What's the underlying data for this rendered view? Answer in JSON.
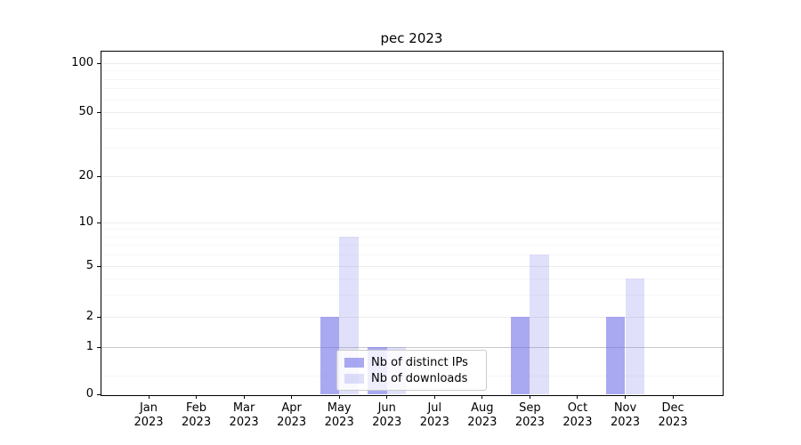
{
  "title": "pec 2023",
  "chart_data": {
    "type": "bar",
    "title": "pec 2023",
    "x_months": [
      "Jan",
      "Feb",
      "Mar",
      "Apr",
      "May",
      "Jun",
      "Jul",
      "Aug",
      "Sep",
      "Oct",
      "Nov",
      "Dec"
    ],
    "x_year": "2023",
    "categories": [
      "Jan 2023",
      "Feb 2023",
      "Mar 2023",
      "Apr 2023",
      "May 2023",
      "Jun 2023",
      "Jul 2023",
      "Aug 2023",
      "Sep 2023",
      "Oct 2023",
      "Nov 2023",
      "Dec 2023"
    ],
    "series": [
      {
        "name": "Nb of distinct IPs",
        "color": "rgba(112,112,232,0.60)",
        "color_hex": "#a9a9f1",
        "values": [
          0,
          0,
          0,
          0,
          2,
          1,
          0,
          0,
          2,
          0,
          2,
          0
        ]
      },
      {
        "name": "Nb of downloads",
        "color": "rgba(112,112,232,0.22)",
        "color_hex": "#dfdff6",
        "values": [
          0,
          0,
          0,
          0,
          8,
          1,
          0,
          0,
          6,
          0,
          4,
          0
        ]
      }
    ],
    "yticks": [
      0,
      1,
      2,
      5,
      10,
      20,
      50,
      100
    ],
    "yscale": "symlog",
    "ylim": [
      0,
      120
    ],
    "grid": true,
    "legend_position": "lower center inside plot"
  },
  "legend": {
    "items": [
      {
        "label": "Nb of distinct IPs"
      },
      {
        "label": "Nb of downloads"
      }
    ]
  },
  "colors": {
    "spine": "#000000",
    "grid_minor": "#f6f6f6",
    "grid_major": "#ececec",
    "grid_one_line": "#c8c8c8",
    "legend_border": "#cccccc",
    "background": "#ffffff"
  }
}
